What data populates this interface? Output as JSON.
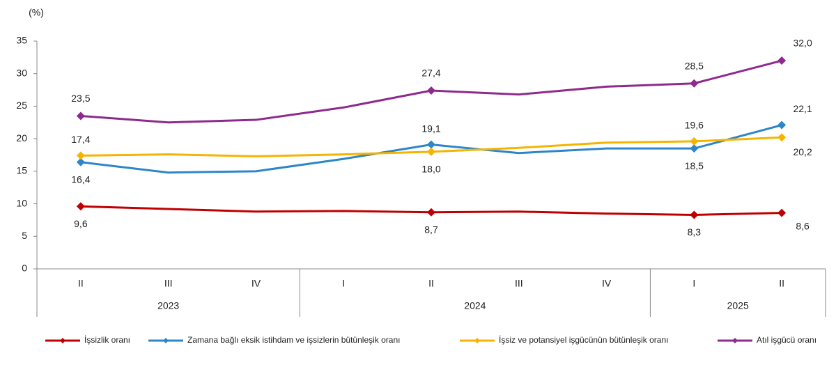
{
  "chart_data": {
    "type": "line",
    "y_label": "(%)",
    "categories": [
      "II",
      "III",
      "IV",
      "I",
      "II",
      "III",
      "IV",
      "I",
      "II"
    ],
    "category_groups": [
      {
        "label": "2023",
        "count": 3
      },
      {
        "label": "2024",
        "count": 4
      },
      {
        "label": "2025",
        "count": 2
      }
    ],
    "ylim": [
      0,
      35
    ],
    "yticks": [
      0,
      5,
      10,
      15,
      20,
      25,
      30,
      35
    ],
    "grid": false,
    "legend": "bottom",
    "series": [
      {
        "name": "İşsizlik oranı",
        "color": "#c00000",
        "values": [
          9.6,
          9.2,
          8.8,
          8.9,
          8.7,
          8.8,
          8.5,
          8.3,
          8.6
        ],
        "value_labels": [
          "9,6",
          null,
          null,
          null,
          "8,7",
          null,
          null,
          "8,3",
          "8,6"
        ]
      },
      {
        "name": "Zamana bağlı eksik istihdam ve işsizlerin bütünleşik oranı",
        "color": "#2e86c8",
        "values": [
          16.4,
          14.8,
          15.0,
          16.9,
          19.1,
          17.8,
          18.5,
          18.5,
          22.1
        ],
        "value_labels": [
          "16,4",
          null,
          null,
          null,
          "19,1",
          null,
          null,
          "18,5",
          "22,1"
        ]
      },
      {
        "name": "İşsiz ve potansiyel işgücünün bütünleşik oranı",
        "color": "#f5b400",
        "values": [
          17.4,
          17.6,
          17.3,
          17.6,
          18.0,
          18.6,
          19.4,
          19.6,
          20.2
        ],
        "value_labels": [
          "17,4",
          null,
          null,
          null,
          "18,0",
          null,
          null,
          "19,6",
          "20,2"
        ]
      },
      {
        "name": "Atıl işgücü oranı",
        "color": "#8e2a8e",
        "values": [
          23.5,
          22.5,
          22.9,
          24.8,
          27.4,
          26.8,
          28.0,
          28.5,
          32.0
        ],
        "value_labels": [
          "23,5",
          null,
          null,
          null,
          "27,4",
          null,
          null,
          "28,5",
          "32,0"
        ]
      }
    ]
  }
}
